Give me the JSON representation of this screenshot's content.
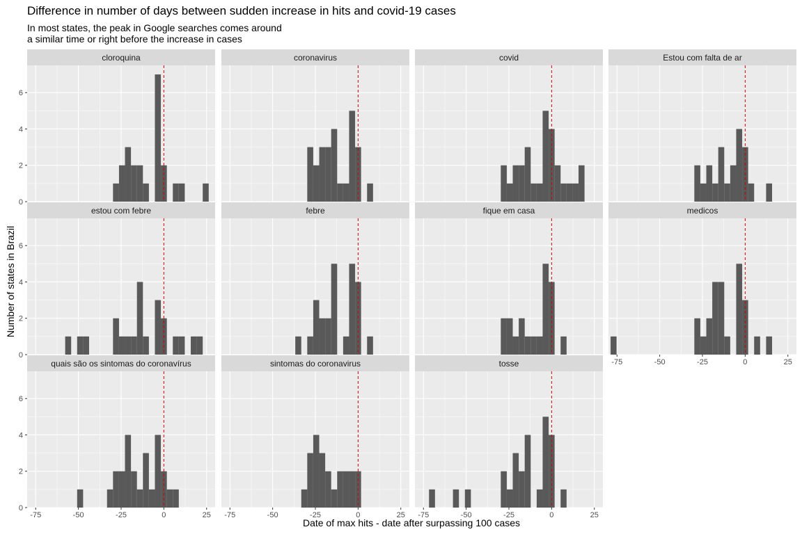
{
  "chart_data": {
    "type": "bar",
    "title": "Difference in number of days between sudden increase in hits and covid-19 cases",
    "subtitle_lines": [
      "In most states, the peak in Google searches comes around",
      "a similar time or right before the increase in cases"
    ],
    "xlabel": "Date of max hits - date after surpassing 100 cases",
    "ylabel": "Number of states in Brazil",
    "xlim": [
      -80,
      30
    ],
    "ylim": [
      0,
      7.5
    ],
    "x_ticks": [
      -75,
      -50,
      -25,
      0,
      25
    ],
    "y_ticks": [
      0,
      2,
      4,
      6
    ],
    "bin_width": 3.5,
    "reference_line_x": 0,
    "colors": {
      "bar": "#595959",
      "panel": "#ebebeb",
      "strip": "#d9d9d9",
      "grid": "#ffffff",
      "reference": "#cc0000"
    },
    "panels": [
      {
        "name": "cloroquina",
        "bars": [
          [
            -28,
            1
          ],
          [
            -24.5,
            2
          ],
          [
            -21,
            3
          ],
          [
            -17.5,
            2
          ],
          [
            -14,
            2
          ],
          [
            -10.5,
            1
          ],
          [
            -3.5,
            7
          ],
          [
            0,
            2
          ],
          [
            7,
            1
          ],
          [
            10.5,
            1
          ],
          [
            24.5,
            1
          ]
        ]
      },
      {
        "name": "coronavirus",
        "bars": [
          [
            -28,
            3
          ],
          [
            -24.5,
            2
          ],
          [
            -21,
            3
          ],
          [
            -17.5,
            3
          ],
          [
            -14,
            4
          ],
          [
            -10.5,
            1
          ],
          [
            -7,
            1
          ],
          [
            -3.5,
            5
          ],
          [
            0,
            3
          ],
          [
            7,
            1
          ]
        ]
      },
      {
        "name": "covid",
        "bars": [
          [
            -28,
            2
          ],
          [
            -24.5,
            1
          ],
          [
            -21,
            2
          ],
          [
            -17.5,
            2
          ],
          [
            -14,
            3
          ],
          [
            -10.5,
            1
          ],
          [
            -7,
            1
          ],
          [
            -3.5,
            5
          ],
          [
            0,
            4
          ],
          [
            3.5,
            2
          ],
          [
            7,
            1
          ],
          [
            10.5,
            1
          ],
          [
            14,
            1
          ],
          [
            17.5,
            2
          ]
        ]
      },
      {
        "name": "Estou com falta de ar",
        "bars": [
          [
            -28,
            2
          ],
          [
            -24.5,
            1
          ],
          [
            -21,
            2
          ],
          [
            -17.5,
            1
          ],
          [
            -14,
            3
          ],
          [
            -10.5,
            1
          ],
          [
            -7,
            2
          ],
          [
            -3.5,
            4
          ],
          [
            0,
            3
          ],
          [
            3.5,
            1
          ],
          [
            14,
            1
          ]
        ]
      },
      {
        "name": "estou com febre",
        "bars": [
          [
            -56,
            1
          ],
          [
            -49,
            1
          ],
          [
            -45.5,
            1
          ],
          [
            -28,
            2
          ],
          [
            -24.5,
            1
          ],
          [
            -21,
            1
          ],
          [
            -17.5,
            1
          ],
          [
            -14,
            4
          ],
          [
            -10.5,
            1
          ],
          [
            -3.5,
            3
          ],
          [
            0,
            2
          ],
          [
            7,
            1
          ],
          [
            10.5,
            1
          ],
          [
            17.5,
            1
          ],
          [
            21,
            1
          ]
        ]
      },
      {
        "name": "febre",
        "bars": [
          [
            -35,
            1
          ],
          [
            -28,
            1
          ],
          [
            -24.5,
            3
          ],
          [
            -21,
            2
          ],
          [
            -17.5,
            2
          ],
          [
            -14,
            5
          ],
          [
            -7,
            1
          ],
          [
            -3.5,
            5
          ],
          [
            0,
            4
          ],
          [
            7,
            1
          ]
        ]
      },
      {
        "name": "fique em casa",
        "bars": [
          [
            -28,
            2
          ],
          [
            -24.5,
            2
          ],
          [
            -21,
            1
          ],
          [
            -17.5,
            2
          ],
          [
            -14,
            1
          ],
          [
            -10.5,
            1
          ],
          [
            -7,
            1
          ],
          [
            -3.5,
            5
          ],
          [
            0,
            4
          ],
          [
            7,
            1
          ]
        ]
      },
      {
        "name": "medicos",
        "bars": [
          [
            -77,
            1
          ],
          [
            -28,
            2
          ],
          [
            -24.5,
            1
          ],
          [
            -21,
            2
          ],
          [
            -17.5,
            4
          ],
          [
            -14,
            4
          ],
          [
            -10.5,
            1
          ],
          [
            -3.5,
            5
          ],
          [
            0,
            3
          ],
          [
            7,
            1
          ],
          [
            14,
            1
          ]
        ]
      },
      {
        "name": "quais são os sintomas do coronavírus",
        "bars": [
          [
            -49,
            1
          ],
          [
            -31.5,
            1
          ],
          [
            -28,
            2
          ],
          [
            -24.5,
            2
          ],
          [
            -21,
            4
          ],
          [
            -17.5,
            2
          ],
          [
            -14,
            1
          ],
          [
            -10.5,
            3
          ],
          [
            -7,
            1
          ],
          [
            -3.5,
            4
          ],
          [
            0,
            2
          ],
          [
            3.5,
            1
          ],
          [
            7,
            1
          ]
        ]
      },
      {
        "name": "sintomas do coronavirus",
        "bars": [
          [
            -31.5,
            1
          ],
          [
            -28,
            3
          ],
          [
            -24.5,
            4
          ],
          [
            -21,
            3
          ],
          [
            -17.5,
            2
          ],
          [
            -14,
            1
          ],
          [
            -10.5,
            2
          ],
          [
            -7,
            2
          ],
          [
            -3.5,
            2
          ],
          [
            0,
            2
          ]
        ]
      },
      {
        "name": "tosse",
        "bars": [
          [
            -70,
            1
          ],
          [
            -56,
            1
          ],
          [
            -49,
            1
          ],
          [
            -28,
            2
          ],
          [
            -24.5,
            1
          ],
          [
            -21,
            3
          ],
          [
            -17.5,
            2
          ],
          [
            -14,
            4
          ],
          [
            -7,
            1
          ],
          [
            -3.5,
            5
          ],
          [
            0,
            4
          ],
          [
            7,
            1
          ]
        ]
      }
    ]
  }
}
